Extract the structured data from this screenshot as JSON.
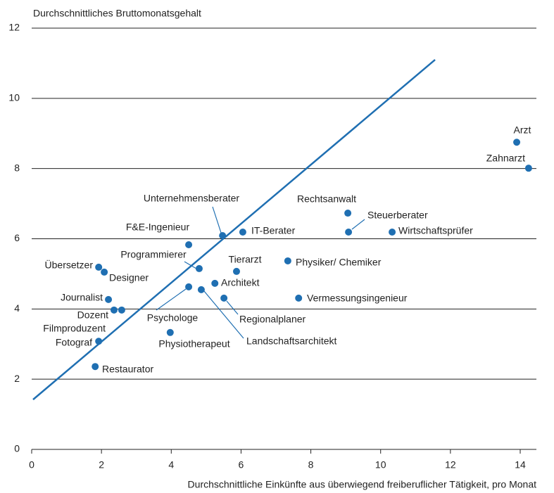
{
  "chart_data": {
    "type": "scatter",
    "y_label": "Durchschnittliches Bruttomonatsgehalt",
    "x_label": "Durchschnittliche Einkünfte aus überwiegend freiberuflicher Tätigkeit, pro Monat",
    "color": "#1f6fb2",
    "labels": [
      "Arzt",
      "Zahnarzt",
      "Rechtsanwalt",
      "Steuerberater",
      "Wirtschaftsprüfer",
      "Unternehmensberater",
      "IT-Berater",
      "F&E-Ingenieur",
      "Programmierer",
      "Tierarzt",
      "Physiker/ Chemiker",
      "Übersetzer",
      "Designer",
      "Architekt",
      "Psychologe",
      "Landschaftsarchitekt",
      "Regionalplaner",
      "Vermessungsingenieur",
      "Journalist",
      "Dozent",
      "Filmproduzent",
      "Physiotherapeut",
      "Fotograf",
      "Restaurator"
    ],
    "x": [
      13.9,
      14.24,
      9.06,
      9.08,
      10.33,
      5.47,
      6.05,
      4.5,
      4.8,
      5.87,
      7.34,
      1.92,
      2.08,
      5.25,
      4.5,
      4.86,
      5.51,
      7.65,
      2.2,
      2.36,
      2.58,
      3.97,
      1.92,
      1.82
    ],
    "values": [
      8.75,
      8.01,
      6.73,
      6.19,
      6.19,
      6.09,
      6.19,
      5.83,
      5.15,
      5.07,
      5.37,
      5.19,
      5.05,
      4.73,
      4.63,
      4.55,
      4.31,
      4.31,
      4.27,
      3.97,
      3.97,
      3.33,
      3.08,
      2.36
    ],
    "trendline": {
      "x": [
        0.04,
        11.56
      ],
      "y": [
        1.42,
        11.1
      ]
    },
    "xlim": [
      0,
      14
    ],
    "ylim": [
      0,
      12
    ],
    "xticks": [
      0,
      2,
      4,
      6,
      8,
      10,
      12,
      14
    ],
    "yticks": [
      0,
      2,
      4,
      6,
      8,
      10,
      12
    ],
    "grid": true
  }
}
